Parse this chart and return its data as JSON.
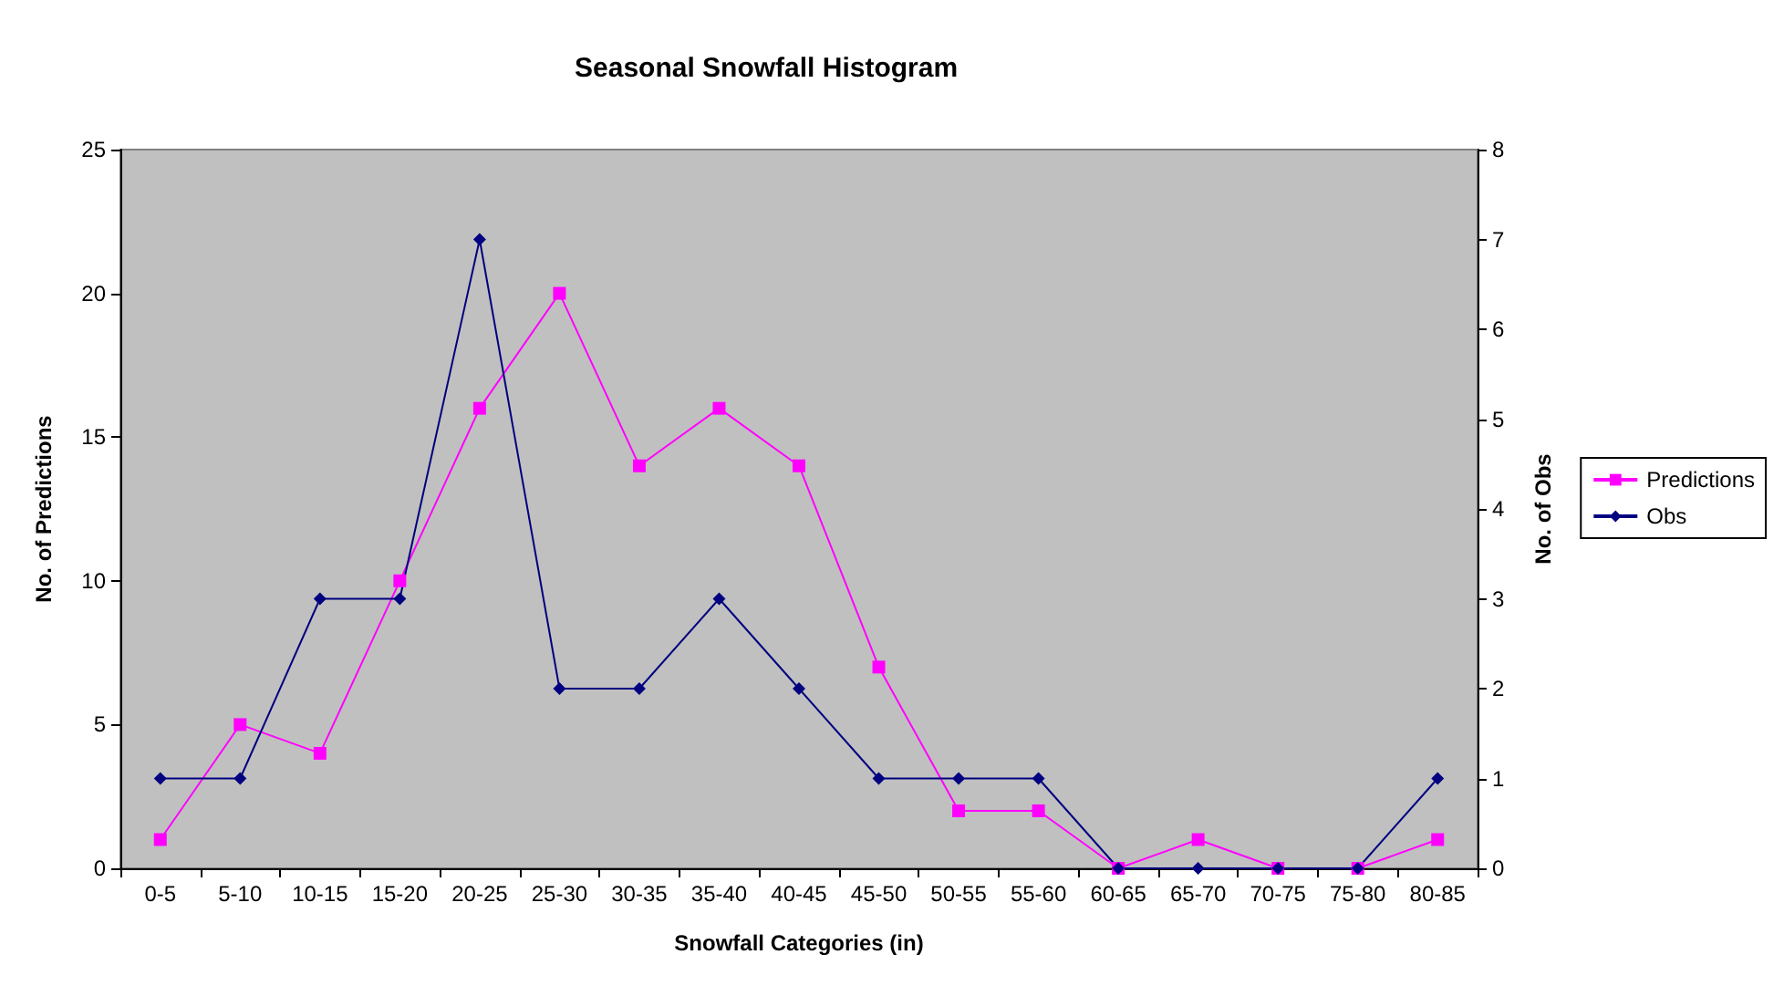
{
  "chart_data": {
    "type": "line",
    "title": "Seasonal Snowfall Histogram",
    "xlabel": "Snowfall Categories (in)",
    "ylabel": "No. of Predictions",
    "y2label": "No. of Obs",
    "categories": [
      "0-5",
      "5-10",
      "10-15",
      "15-20",
      "20-25",
      "25-30",
      "30-35",
      "35-40",
      "40-45",
      "45-50",
      "50-55",
      "55-60",
      "60-65",
      "65-70",
      "70-75",
      "75-80",
      "80-85"
    ],
    "series": [
      {
        "name": "Predictions",
        "color": "#ff00ff",
        "marker": "square",
        "values": [
          1,
          5,
          4,
          10,
          16,
          20,
          14,
          16,
          14,
          7,
          2,
          2,
          0,
          1,
          0,
          0,
          1
        ]
      },
      {
        "name": "Obs",
        "color": "#000080",
        "marker": "diamond",
        "axis": "y2",
        "values": [
          1,
          1,
          3,
          3,
          7,
          2,
          2,
          3,
          2,
          1,
          1,
          1,
          0,
          0,
          0,
          0,
          1
        ]
      }
    ],
    "ylim": [
      0,
      25
    ],
    "yticks": [
      0,
      5,
      10,
      15,
      20,
      25
    ],
    "y2lim": [
      0,
      8
    ],
    "y2ticks": [
      0,
      1,
      2,
      3,
      4,
      5,
      6,
      7,
      8
    ],
    "grid": false,
    "legend": "right",
    "line_style": "solid"
  }
}
